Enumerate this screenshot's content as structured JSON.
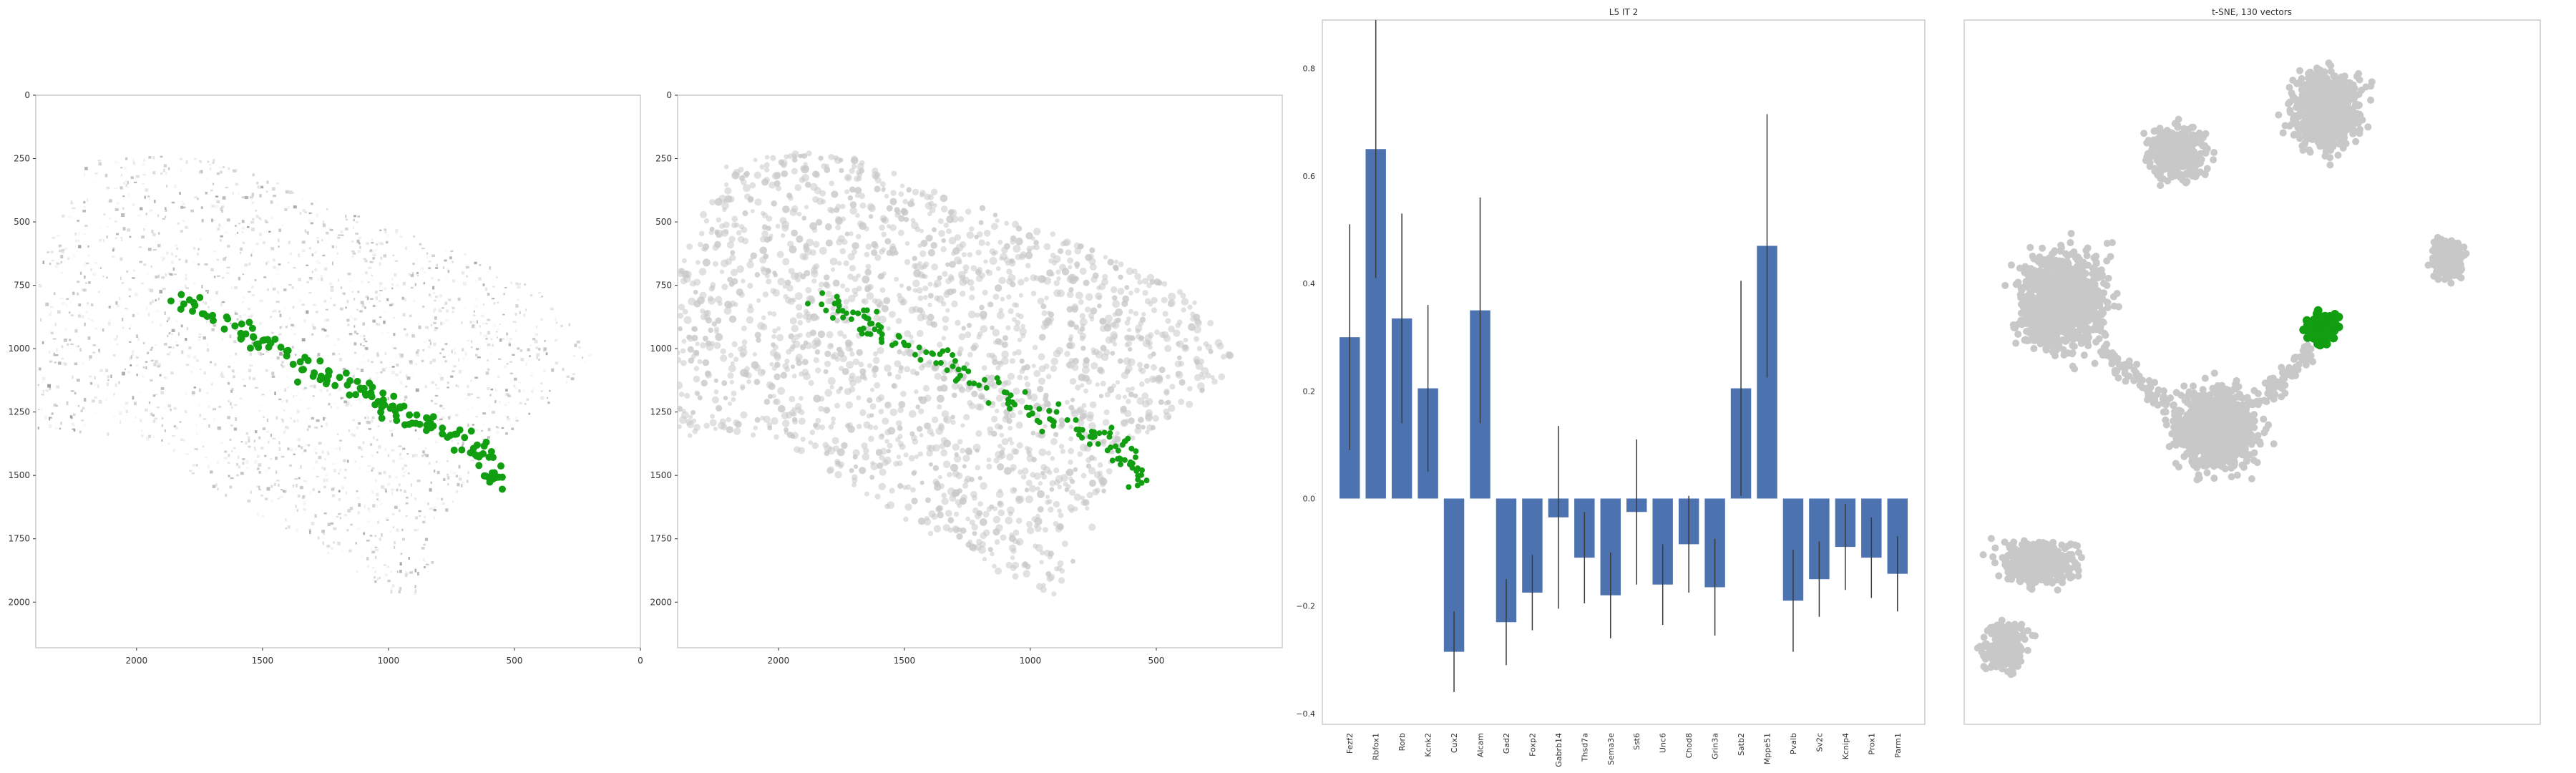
{
  "colors": {
    "highlight": "#119e11",
    "bar": "#4c72b0",
    "background_cells": "#c8c8c8",
    "tsne_points": "#c8c8c8",
    "frame": "#cccccc"
  },
  "chart_data": [
    {
      "type": "scatter",
      "panel": "spatial-intensity",
      "title": "",
      "xlabel": "",
      "ylabel": "",
      "xlim": [
        2400,
        0
      ],
      "ylim": [
        2180,
        0
      ],
      "x_ticks": [
        "2000",
        "1500",
        "1000",
        "500",
        "0"
      ],
      "y_ticks": [
        "0",
        "250",
        "500",
        "750",
        "1000",
        "1250",
        "1500",
        "1750",
        "2000"
      ],
      "grid": false,
      "background": "grayscale tissue intensity",
      "highlight_color": "#119e11",
      "highlight_band": [
        [
          1840,
          800
        ],
        [
          1500,
          980
        ],
        [
          1200,
          1120
        ],
        [
          950,
          1260
        ],
        [
          650,
          1380
        ],
        [
          560,
          1540
        ]
      ]
    },
    {
      "type": "scatter",
      "panel": "spatial-segmented",
      "title": "",
      "xlabel": "",
      "ylabel": "",
      "xlim": [
        2400,
        0
      ],
      "ylim": [
        2180,
        0
      ],
      "x_ticks": [
        "2000",
        "1500",
        "1000",
        "500"
      ],
      "y_ticks": [
        "0",
        "250",
        "500",
        "750",
        "1000",
        "1250",
        "1500",
        "1750",
        "2000"
      ],
      "grid": false,
      "background": "light gray cell masks",
      "highlight_color": "#119e11",
      "highlight_band": [
        [
          1840,
          800
        ],
        [
          1500,
          980
        ],
        [
          1200,
          1120
        ],
        [
          950,
          1260
        ],
        [
          650,
          1380
        ],
        [
          560,
          1540
        ]
      ]
    },
    {
      "type": "bar",
      "title": "L5 IT 2",
      "xlabel": "",
      "ylabel": "",
      "ylim": [
        -0.42,
        0.89
      ],
      "y_ticks": [
        "−0.4",
        "−0.2",
        "0.0",
        "0.2",
        "0.4",
        "0.6",
        "0.8"
      ],
      "grid": false,
      "categories": [
        "Fezf2",
        "Rbfox1",
        "Rorb",
        "Kcnk2",
        "Cux2",
        "Alcam",
        "Gad2",
        "Foxp2",
        "Gabrb14",
        "Thsd7a",
        "Sema3e",
        "Sst6",
        "Unc6",
        "Chod8",
        "Grin3a",
        "Satb2",
        "Mppe51",
        "Pvalb",
        "Sv2c",
        "Kcnip4",
        "Prox1",
        "Parm1"
      ],
      "values": [
        0.3,
        0.65,
        0.335,
        0.205,
        -0.285,
        0.35,
        -0.23,
        -0.175,
        -0.035,
        -0.11,
        -0.18,
        -0.025,
        -0.16,
        -0.085,
        -0.165,
        0.205,
        0.47,
        -0.19,
        -0.15,
        -0.09,
        -0.11,
        -0.14
      ],
      "errors": [
        0.21,
        0.24,
        0.195,
        0.155,
        0.075,
        0.21,
        0.08,
        0.07,
        0.17,
        0.085,
        0.08,
        0.135,
        0.075,
        0.09,
        0.09,
        0.2,
        0.245,
        0.095,
        0.07,
        0.08,
        0.075,
        0.07
      ]
    },
    {
      "type": "scatter",
      "title": "t-SNE, 130 vectors",
      "xlabel": "",
      "ylabel": "",
      "grid": false,
      "point_color": "#c8c8c8",
      "highlight_color": "#119e11",
      "highlight_cluster_center": [
        0.62,
        0.44
      ],
      "clusters": [
        {
          "center": [
            0.63,
            0.13
          ],
          "spread": [
            0.075,
            0.07
          ],
          "count": 900
        },
        {
          "center": [
            0.37,
            0.19
          ],
          "spread": [
            0.065,
            0.05
          ],
          "count": 420
        },
        {
          "center": [
            0.17,
            0.4
          ],
          "spread": [
            0.1,
            0.09
          ],
          "count": 1100
        },
        {
          "center": [
            0.44,
            0.58
          ],
          "spread": [
            0.09,
            0.07
          ],
          "count": 1300
        },
        {
          "center": [
            0.84,
            0.34
          ],
          "spread": [
            0.035,
            0.035
          ],
          "count": 260
        },
        {
          "center": [
            0.13,
            0.77
          ],
          "spread": [
            0.09,
            0.04
          ],
          "count": 420
        },
        {
          "center": [
            0.07,
            0.89
          ],
          "spread": [
            0.05,
            0.045
          ],
          "count": 280
        }
      ]
    }
  ]
}
